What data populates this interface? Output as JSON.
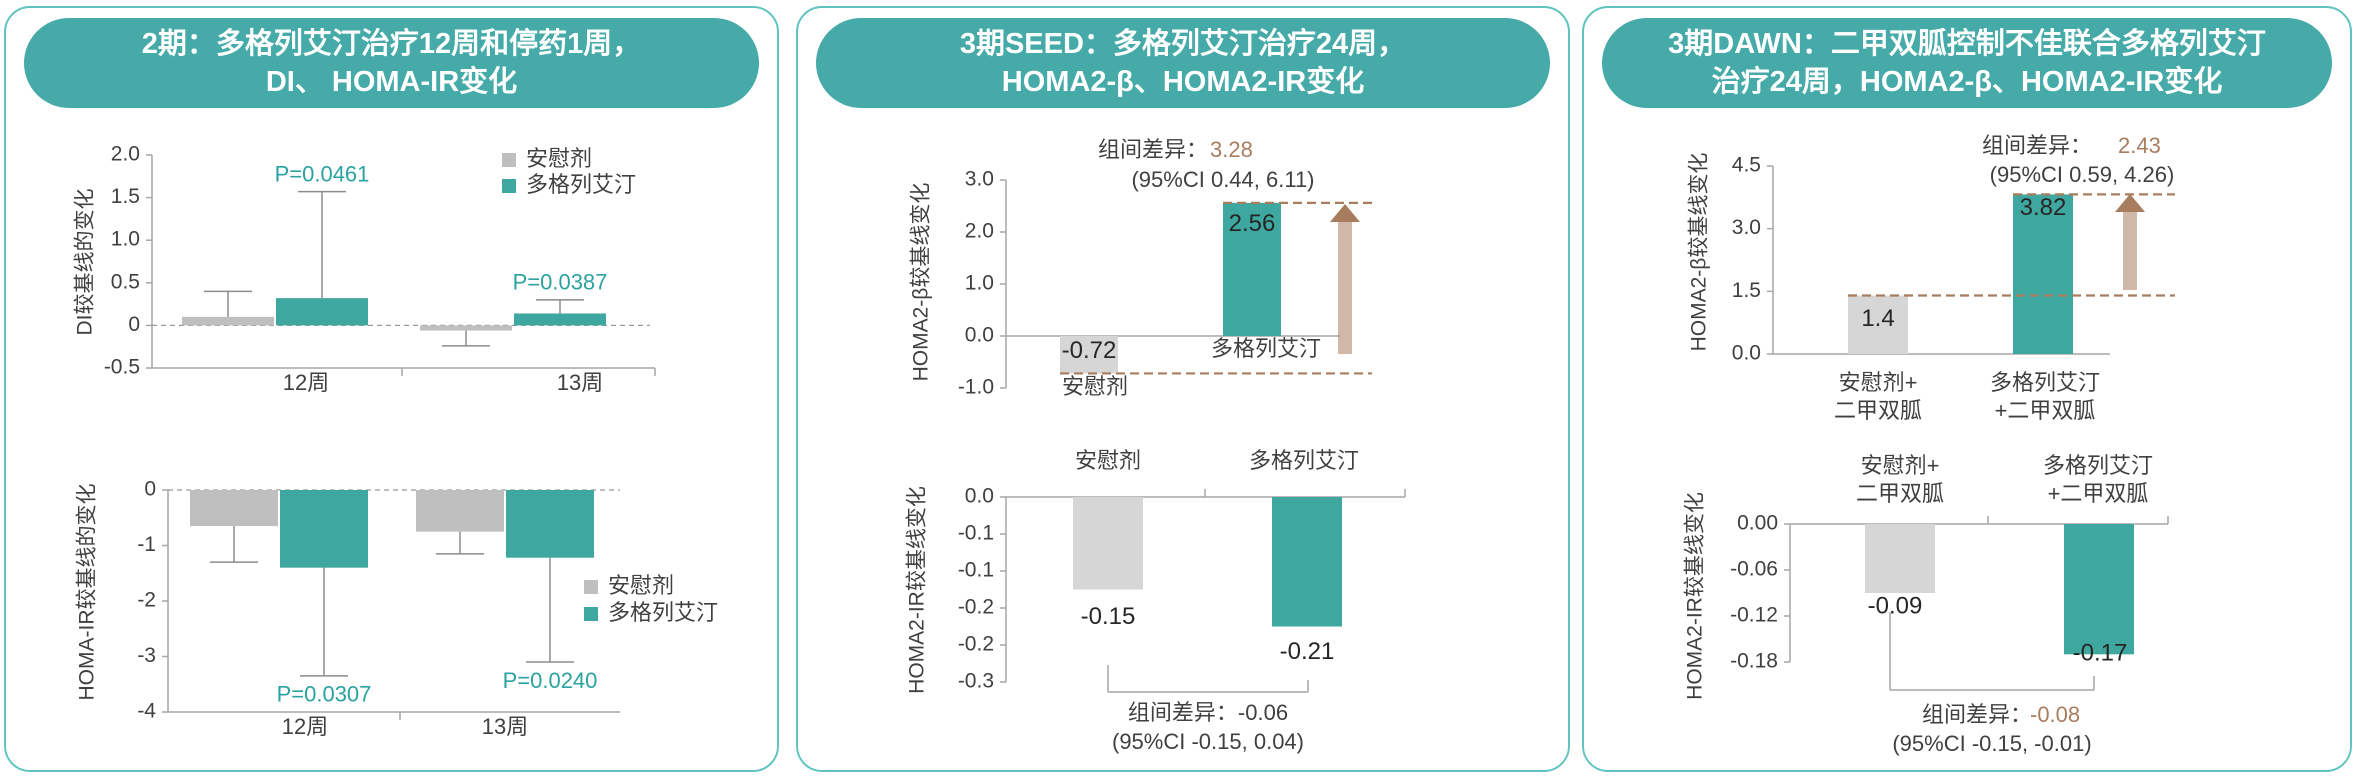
{
  "colors": {
    "teal": "#3ea7a0",
    "grey": "#bfbfbf",
    "lightgrey": "#d6d6d6",
    "brown": "#a87d5e",
    "pval": "#2aa3a0",
    "axis": "#a6a6a6",
    "header": "#45aaa8"
  },
  "panels": [
    {
      "title_line1": "2期：多格列艾汀治疗12周和停药1周，",
      "title_line2": "DI、 HOMA-IR变化"
    },
    {
      "title_line1": "3期SEED：多格列艾汀治疗24周，",
      "title_line2": "HOMA2-β、HOMA2-IR变化"
    },
    {
      "title_line1": "3期DAWN：二甲双胍控制不佳联合多格列艾汀",
      "title_line2": "治疗24周，HOMA2-β、HOMA2-IR变化"
    }
  ],
  "chart_data": [
    {
      "id": "p2-di",
      "type": "bar",
      "title": "",
      "ylabel": "DI较基线的变化",
      "xlabel": "",
      "categories": [
        "12周",
        "13周"
      ],
      "ylim": [
        -0.5,
        2.0
      ],
      "yticks": [
        "2.0",
        "1.5",
        "1.0",
        "0.5",
        "0",
        "-0.5"
      ],
      "series": [
        {
          "name": "安慰剂",
          "values": [
            0.1,
            -0.06
          ],
          "errors": [
            0.3,
            0.18
          ],
          "error_dir": [
            1,
            -1
          ]
        },
        {
          "name": "多格列艾汀",
          "values": [
            0.32,
            0.14
          ],
          "errors": [
            1.25,
            0.16
          ],
          "error_dir": [
            1,
            1
          ]
        }
      ],
      "pvalues": [
        "P=0.0461",
        "P=0.0387"
      ],
      "legend": "top-right"
    },
    {
      "id": "p2-homa",
      "type": "bar",
      "title": "",
      "ylabel": "HOMA-IR较基线的变化",
      "xlabel": "",
      "categories": [
        "12周",
        "13周"
      ],
      "ylim": [
        -4,
        0
      ],
      "yticks": [
        "0",
        "-1",
        "-2",
        "-3",
        "-4"
      ],
      "series": [
        {
          "name": "安慰剂",
          "values": [
            -0.65,
            -0.75
          ],
          "errors": [
            0.65,
            0.4
          ],
          "error_dir": [
            -1,
            -1
          ]
        },
        {
          "name": "多格列艾汀",
          "values": [
            -1.4,
            -1.22
          ],
          "errors": [
            1.95,
            1.88
          ],
          "error_dir": [
            -1,
            -1
          ]
        }
      ],
      "pvalues": [
        "P=0.0307",
        "P=0.0240"
      ],
      "legend": "bottom-right"
    },
    {
      "id": "seed-beta",
      "type": "bar",
      "title": "",
      "ylabel": "HOMA2-β较基线变化",
      "xlabel": "",
      "categories": [
        "安慰剂",
        "多格列艾汀"
      ],
      "ylim": [
        -1.0,
        3.0
      ],
      "yticks": [
        "3.0",
        "2.0",
        "1.0",
        "0.0",
        "-1.0"
      ],
      "values": [
        -0.72,
        2.56
      ],
      "value_labels": [
        "-0.72",
        "2.56"
      ],
      "diff_label": "组间差异：",
      "diff_value": "3.28",
      "ci": "(95%CI 0.44, 6.11)"
    },
    {
      "id": "seed-ir",
      "type": "bar",
      "title": "",
      "ylabel": "HOMA2-IR较基线变化",
      "xlabel": "",
      "categories": [
        "安慰剂",
        "多格列艾汀"
      ],
      "ylim": [
        -0.3,
        0.0
      ],
      "yticks": [
        "0.0",
        "-0.1",
        "-0.1",
        "-0.2",
        "-0.2",
        "-0.3"
      ],
      "values": [
        -0.15,
        -0.21
      ],
      "value_labels": [
        "-0.15",
        "-0.21"
      ],
      "diff_label": "组间差异：-0.06",
      "ci": "(95%CI -0.15, 0.04)"
    },
    {
      "id": "dawn-beta",
      "type": "bar",
      "title": "",
      "ylabel": "HOMA2-β较基线变化",
      "xlabel": "",
      "categories": [
        [
          "安慰剂+",
          "二甲双胍"
        ],
        [
          "多格列艾汀",
          "+二甲双胍"
        ]
      ],
      "ylim": [
        0.0,
        4.5
      ],
      "yticks": [
        "4.5",
        "3.0",
        "1.5",
        "0.0"
      ],
      "values": [
        1.4,
        3.82
      ],
      "value_labels": [
        "1.4",
        "3.82"
      ],
      "diff_label": "组间差异：",
      "diff_value": "2.43",
      "ci": "(95%CI 0.59, 4.26)"
    },
    {
      "id": "dawn-ir",
      "type": "bar",
      "title": "",
      "ylabel": "HOMA2-IR较基线变化",
      "xlabel": "",
      "categories": [
        [
          "安慰剂+",
          "二甲双胍"
        ],
        [
          "多格列艾汀",
          "+二甲双胍"
        ]
      ],
      "ylim": [
        -0.18,
        0.0
      ],
      "yticks": [
        "0.00",
        "-0.06",
        "-0.12",
        "-0.18"
      ],
      "values": [
        -0.09,
        -0.17
      ],
      "value_labels": [
        "-0.09",
        "-0.17"
      ],
      "diff_label": "组间差异：",
      "diff_value": "-0.08",
      "ci": "(95%CI -0.15, -0.01)"
    }
  ]
}
